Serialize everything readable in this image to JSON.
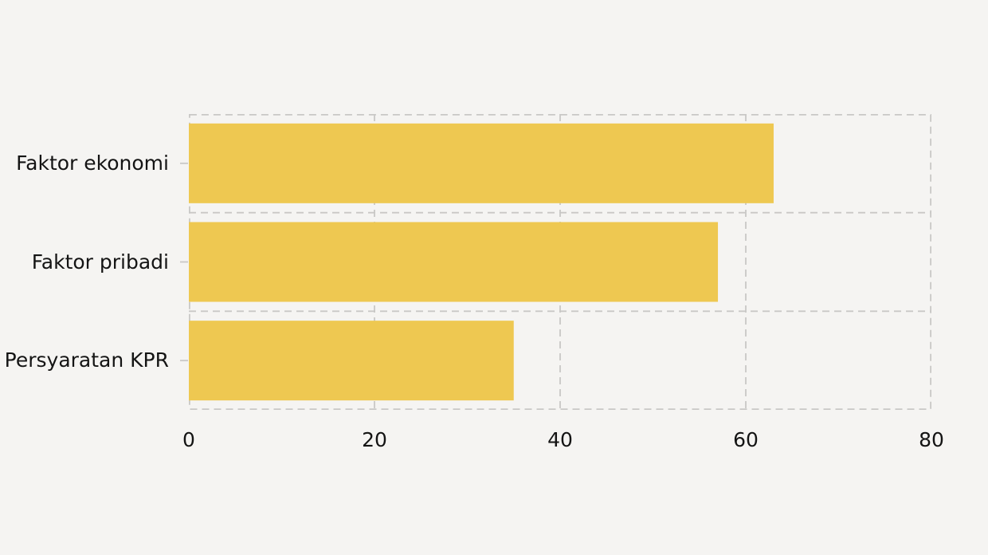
{
  "figure": {
    "background_color": "#f5f4f2",
    "text_color": "#141414",
    "grid_color": "#c9c8c6",
    "bar_color": "#eec851"
  },
  "chart_data": {
    "type": "bar",
    "orientation": "horizontal",
    "title": "",
    "xlabel": "",
    "ylabel": "",
    "categories": [
      "Faktor ekonomi",
      "Faktor pribadi",
      "Persyaratan KPR"
    ],
    "values": [
      63,
      57,
      35
    ],
    "xlim": [
      0,
      80
    ],
    "xticks": [
      0,
      20,
      40,
      60,
      80
    ],
    "xtick_labels": [
      "0",
      "20",
      "40",
      "60",
      "80"
    ],
    "grid": "on",
    "grid_style": "dashed",
    "legend": "none"
  }
}
